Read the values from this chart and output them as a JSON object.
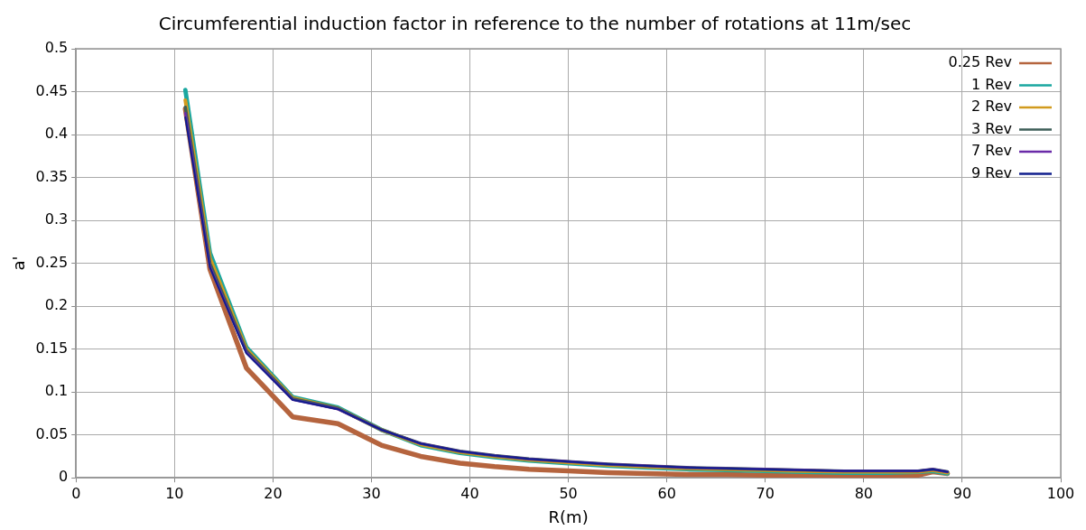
{
  "chart_data": {
    "type": "line",
    "title": "Circumferential induction factor in reference to the number of rotations at 11m/sec",
    "xlabel": "R(m)",
    "ylabel": "a'",
    "x": [
      11.1,
      13.6,
      17.3,
      22,
      26.6,
      31,
      35,
      39,
      42.5,
      46,
      50,
      54,
      58,
      62,
      66,
      70,
      74,
      78,
      82,
      85.5,
      87,
      88.5
    ],
    "xlim": [
      0,
      100
    ],
    "xticks": [
      0,
      10,
      20,
      30,
      40,
      50,
      60,
      70,
      80,
      90,
      100
    ],
    "ylim": [
      0,
      0.5
    ],
    "yticks": [
      0,
      0.05,
      0.1,
      0.15,
      0.2,
      0.25,
      0.3,
      0.35,
      0.4,
      0.45,
      0.5
    ],
    "grid": true,
    "legend": "top right",
    "marker": "none",
    "line_style": "solid",
    "series": [
      {
        "name": "0.25 Rev",
        "color": "#b5643e",
        "values": [
          0.43,
          0.243,
          0.128,
          0.071,
          0.063,
          0.038,
          0.025,
          0.017,
          0.013,
          0.01,
          0.008,
          0.006,
          0.005,
          0.004,
          0.004,
          0.003,
          0.003,
          0.002,
          0.002,
          0.003,
          0.007,
          0.005
        ]
      },
      {
        "name": "1 Rev",
        "color": "#1aa7a0",
        "values": [
          0.452,
          0.262,
          0.152,
          0.094,
          0.082,
          0.056,
          0.038,
          0.029,
          0.024,
          0.02,
          0.017,
          0.014,
          0.012,
          0.01,
          0.009,
          0.008,
          0.007,
          0.006,
          0.006,
          0.007,
          0.008,
          0.005
        ]
      },
      {
        "name": "2 Rev",
        "color": "#d19a1e",
        "values": [
          0.44,
          0.256,
          0.15,
          0.093,
          0.081,
          0.056,
          0.039,
          0.03,
          0.025,
          0.021,
          0.018,
          0.015,
          0.013,
          0.011,
          0.01,
          0.009,
          0.008,
          0.007,
          0.007,
          0.007,
          0.009,
          0.006
        ]
      },
      {
        "name": "3 Rev",
        "color": "#3e5e58",
        "values": [
          0.432,
          0.25,
          0.148,
          0.092,
          0.081,
          0.056,
          0.04,
          0.031,
          0.026,
          0.022,
          0.019,
          0.016,
          0.014,
          0.012,
          0.011,
          0.01,
          0.009,
          0.008,
          0.008,
          0.008,
          0.01,
          0.007
        ]
      },
      {
        "name": "7 Rev",
        "color": "#6a2aa8",
        "values": [
          0.425,
          0.246,
          0.146,
          0.091,
          0.08,
          0.056,
          0.04,
          0.031,
          0.026,
          0.022,
          0.019,
          0.016,
          0.014,
          0.012,
          0.011,
          0.01,
          0.009,
          0.008,
          0.008,
          0.008,
          0.01,
          0.007
        ]
      },
      {
        "name": "9 Rev",
        "color": "#101e8c",
        "values": [
          0.42,
          0.245,
          0.145,
          0.091,
          0.08,
          0.056,
          0.04,
          0.031,
          0.026,
          0.022,
          0.019,
          0.016,
          0.014,
          0.012,
          0.011,
          0.01,
          0.009,
          0.008,
          0.008,
          0.008,
          0.01,
          0.007
        ]
      }
    ]
  }
}
